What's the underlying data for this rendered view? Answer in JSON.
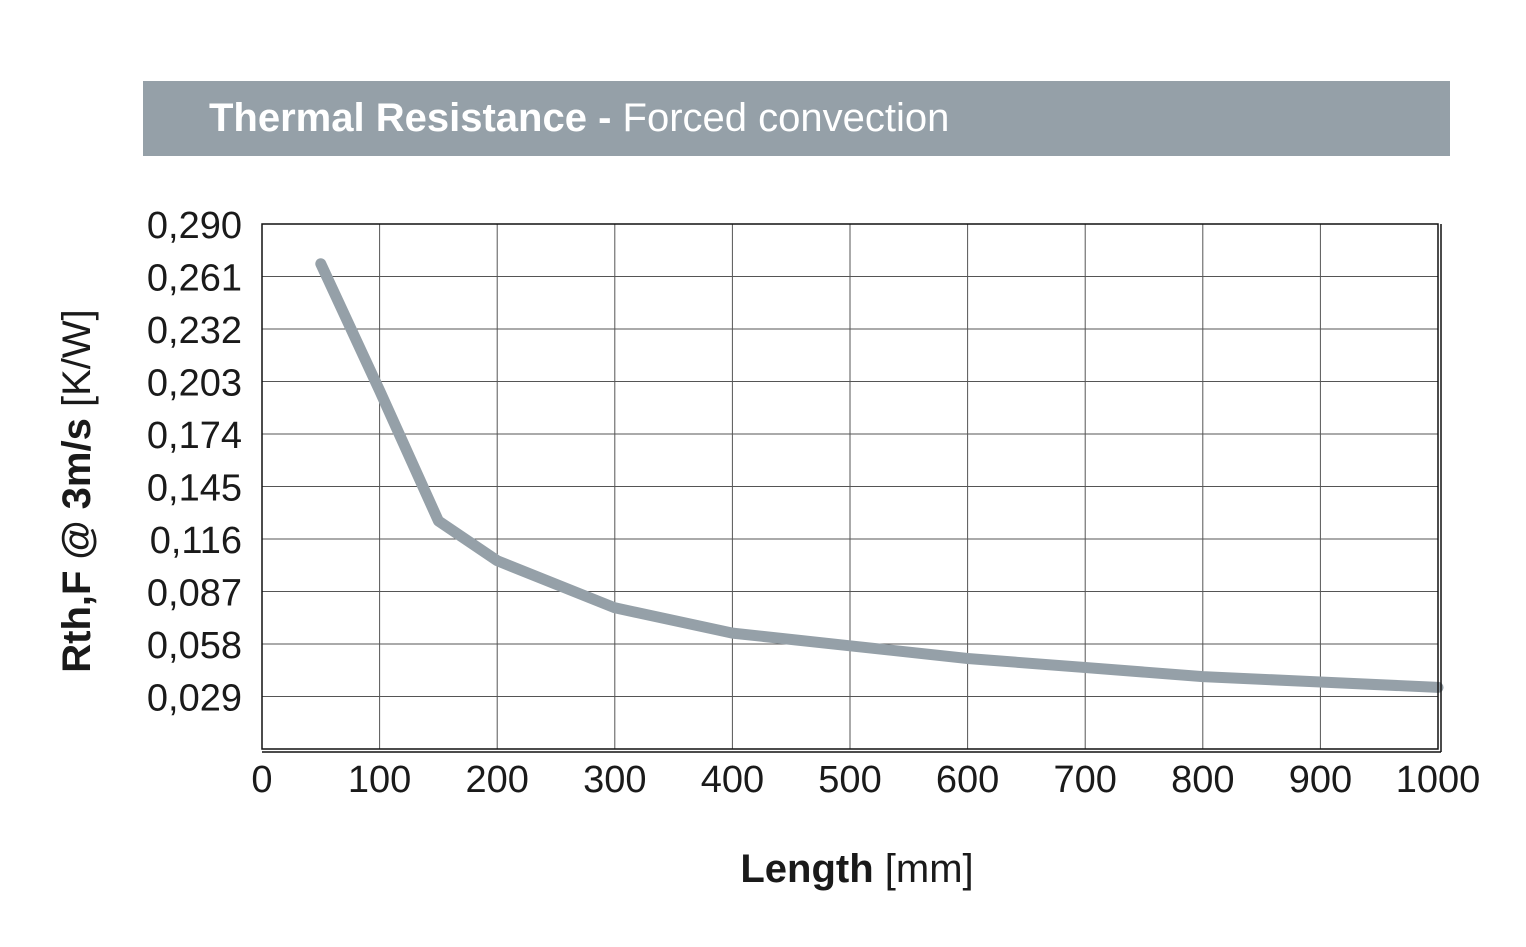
{
  "title": {
    "main": "Thermal Resistance -",
    "sub": "Forced convection"
  },
  "colors": {
    "title_bar": "#95a0a8",
    "series_line": "#95a0a8",
    "grid": "#555555",
    "frame": "#111111"
  },
  "chart_data": {
    "type": "line",
    "x_label_bold": "Length",
    "x_label_unit": "[mm]",
    "y_label_bold": "Rth,F @ 3m/s",
    "y_label_unit": "[K/W]",
    "xlim": [
      0,
      1000
    ],
    "ylim": [
      0,
      0.29
    ],
    "x_ticks": [
      0,
      100,
      200,
      300,
      400,
      500,
      600,
      700,
      800,
      900,
      1000
    ],
    "x_tick_labels": [
      "0",
      "100",
      "200",
      "300",
      "400",
      "500",
      "600",
      "700",
      "800",
      "900",
      "1000"
    ],
    "y_ticks": [
      0.029,
      0.058,
      0.087,
      0.116,
      0.145,
      0.174,
      0.203,
      0.232,
      0.261,
      0.29
    ],
    "y_tick_labels": [
      "0,029",
      "0,058",
      "0,087",
      "0,116",
      "0,145",
      "0,174",
      "0,203",
      "0,232",
      "0,261",
      "0,290"
    ],
    "grid": true,
    "series": [
      {
        "x": [
          50,
          100,
          150,
          200,
          300,
          400,
          500,
          600,
          700,
          800,
          900,
          1000
        ],
        "y": [
          0.268,
          0.198,
          0.126,
          0.104,
          0.078,
          0.064,
          0.057,
          0.05,
          0.045,
          0.04,
          0.037,
          0.034
        ]
      }
    ]
  }
}
